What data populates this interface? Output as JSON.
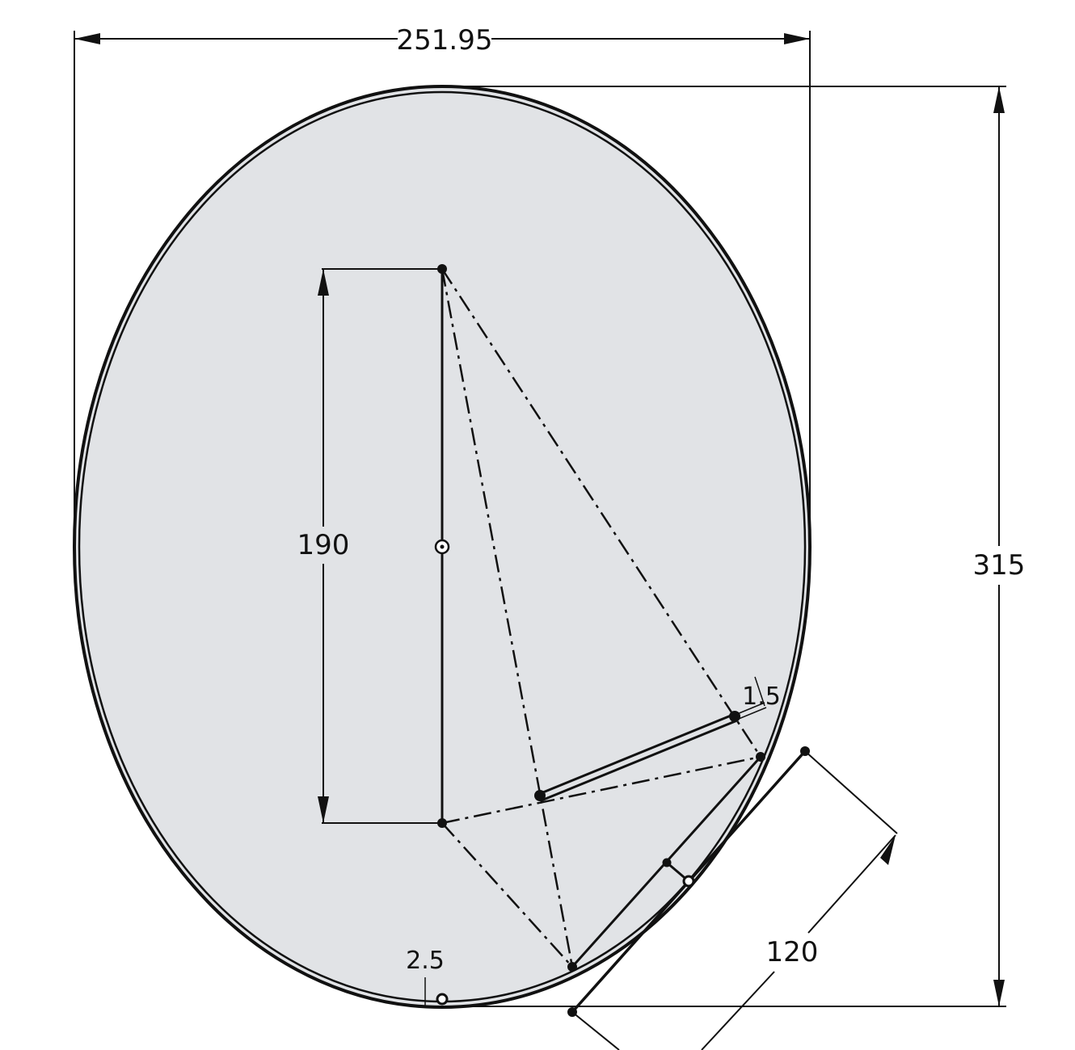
{
  "drawing": {
    "dimensions": {
      "overall_width": "251.95",
      "overall_height": "315",
      "axis_length": "190",
      "tangent_length": "120",
      "wall_thickness": "2.5",
      "rod_thickness": "1.5"
    },
    "colors": {
      "body_fill": "#e1e3e6",
      "line": "#111111",
      "background": "#ffffff"
    }
  }
}
